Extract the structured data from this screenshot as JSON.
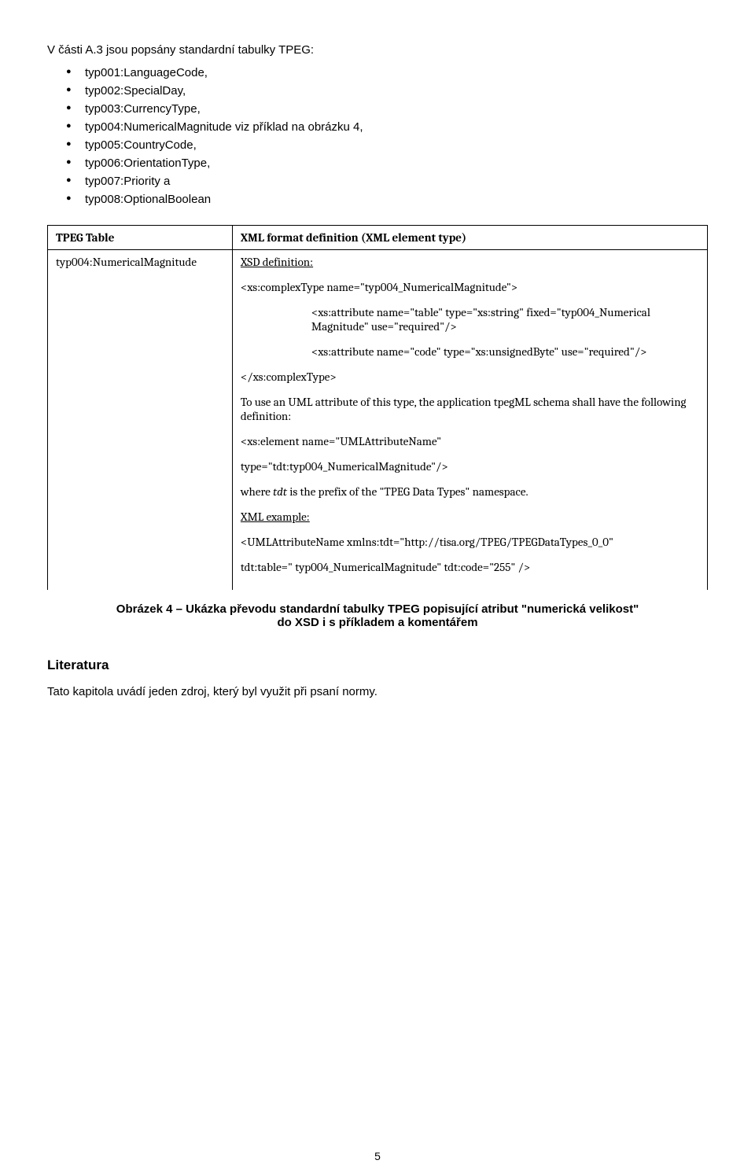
{
  "intro": "V části A.3 jsou popsány standardní tabulky TPEG:",
  "bullets": [
    "typ001:LanguageCode,",
    "typ002:SpecialDay,",
    "typ003:CurrencyType,",
    "typ004:NumericalMagnitude viz příklad na obrázku 4,",
    "typ005:CountryCode,",
    "typ006:OrientationType,",
    "typ007:Priority a",
    "typ008:OptionalBoolean"
  ],
  "table": {
    "header": {
      "col1": "TPEG Table",
      "col2": "XML format definition (XML element type)"
    },
    "row": {
      "col1": "typ004:NumericalMagnitude",
      "xsd_def": "XSD definition:",
      "line1": "<xs:complexType name=\"typ004_NumericalMagnitude\">",
      "line2": "<xs:attribute name=\"table\" type=\"xs:string\" fixed=\"typ004_Numerical Magnitude\" use=\"required\"/>",
      "line3": "<xs:attribute name=\"code\" type=\"xs:unsignedByte\" use=\"required\"/>",
      "line4": "</xs:complexType>",
      "body1": "To use an UML attribute of this type, the application tpegML schema shall have the following definition:",
      "line5": "<xs:element name=\"UMLAttributeName\"",
      "line6": "type=\"tdt:typ004_NumericalMagnitude\"/>",
      "body2_pre": "where ",
      "body2_it": "tdt",
      "body2_post": " is the prefix of the \"TPEG Data Types\" namespace.",
      "xml_ex": "XML example:",
      "line7": "<UMLAttributeName xmlns:tdt=\"http://tisa.org/TPEG/TPEGDataTypes_0_0\"",
      "line8": "tdt:table=\" typ004_NumericalMagnitude\" tdt:code=\"255\" />"
    }
  },
  "caption_l1": "Obrázek 4 – Ukázka převodu standardní tabulky TPEG popisující atribut \"numerická velikost\"",
  "caption_l2": "do XSD i s příkladem a komentářem",
  "lit_heading": "Literatura",
  "lit_text": "Tato kapitola uvádí jeden zdroj, který byl využit při psaní normy.",
  "page_num": "5"
}
